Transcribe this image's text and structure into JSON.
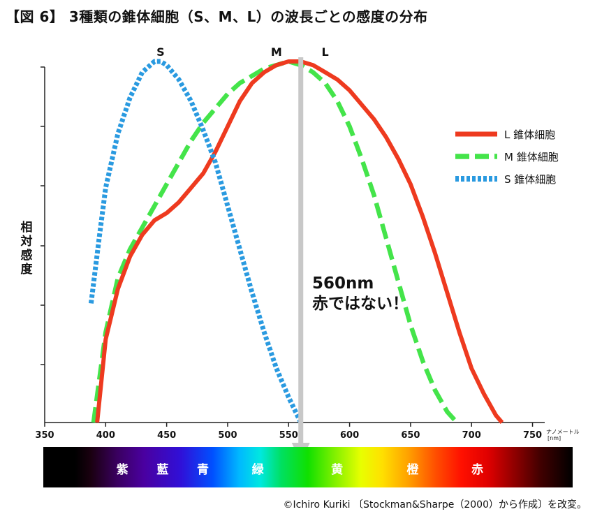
{
  "chart_data": {
    "type": "line",
    "title": "【図 6】 3種類の錐体細胞（S、M、L）の波長ごとの感度の分布",
    "xlabel": "",
    "x_unit_kana": "ナノメートル",
    "x_unit": "[nm]",
    "ylabel": "相対感度",
    "xlim": [
      350,
      760
    ],
    "ylim": [
      0,
      1
    ],
    "x_ticks": [
      350,
      400,
      450,
      500,
      550,
      600,
      650,
      700,
      750
    ],
    "series": [
      {
        "name": "L 錐体細胞",
        "peak_label": "L",
        "color": "#ee3a1f",
        "style": "solid",
        "x": [
          393,
          400,
          410,
          420,
          430,
          440,
          450,
          460,
          470,
          480,
          490,
          500,
          510,
          520,
          530,
          540,
          550,
          560,
          570,
          580,
          590,
          600,
          610,
          620,
          630,
          640,
          650,
          660,
          670,
          680,
          690,
          700,
          710,
          720,
          725
        ],
        "values": [
          0.0,
          0.23,
          0.37,
          0.46,
          0.52,
          0.56,
          0.58,
          0.61,
          0.65,
          0.69,
          0.75,
          0.82,
          0.89,
          0.94,
          0.97,
          0.99,
          1.0,
          1.0,
          0.99,
          0.97,
          0.95,
          0.92,
          0.88,
          0.84,
          0.79,
          0.73,
          0.66,
          0.57,
          0.47,
          0.36,
          0.25,
          0.15,
          0.08,
          0.02,
          0.0
        ]
      },
      {
        "name": "M 錐体細胞",
        "peak_label": "M",
        "color": "#44e44a",
        "style": "dashed",
        "x": [
          390,
          400,
          410,
          420,
          430,
          440,
          450,
          460,
          470,
          480,
          490,
          500,
          510,
          520,
          530,
          540,
          550,
          560,
          570,
          580,
          590,
          600,
          610,
          620,
          630,
          640,
          650,
          660,
          670,
          680,
          688
        ],
        "values": [
          0.0,
          0.25,
          0.4,
          0.48,
          0.54,
          0.6,
          0.66,
          0.72,
          0.78,
          0.83,
          0.87,
          0.91,
          0.94,
          0.96,
          0.98,
          0.99,
          1.0,
          0.99,
          0.97,
          0.94,
          0.89,
          0.82,
          0.73,
          0.63,
          0.51,
          0.39,
          0.27,
          0.17,
          0.09,
          0.03,
          0.0
        ]
      },
      {
        "name": "S 錐体細胞",
        "peak_label": "S",
        "color": "#2a9ae0",
        "style": "dotted",
        "x": [
          388,
          395,
          400,
          410,
          420,
          430,
          440,
          445,
          450,
          460,
          470,
          480,
          490,
          500,
          510,
          520,
          530,
          540,
          550,
          560
        ],
        "values": [
          0.33,
          0.52,
          0.65,
          0.8,
          0.9,
          0.97,
          1.0,
          1.0,
          0.99,
          0.95,
          0.89,
          0.81,
          0.72,
          0.6,
          0.48,
          0.36,
          0.25,
          0.15,
          0.07,
          0.0
        ]
      }
    ],
    "marker": {
      "x": 560,
      "label_line1": "560nm",
      "label_line2": "赤ではない！"
    },
    "legend_position": "right",
    "grid": false
  },
  "spectrum": {
    "colors": [
      "紫",
      "藍",
      "青",
      "緑",
      "黄",
      "橙",
      "赤"
    ],
    "color_positions_nm": [
      414,
      447,
      480,
      525,
      590,
      652,
      705
    ]
  },
  "credit": "©Ichiro Kuriki 〔Stockman&Sharpe（2000）から作成〕を改変。"
}
